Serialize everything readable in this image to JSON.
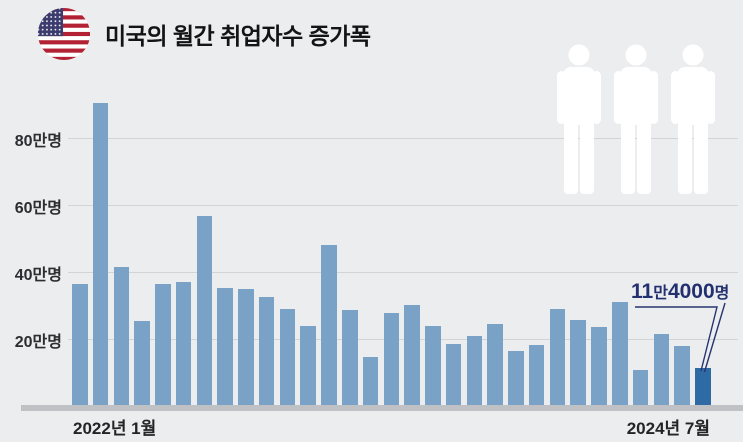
{
  "header": {
    "title": "미국의 월간 취업자수 증가폭",
    "flag_icon": "us-flag-icon"
  },
  "decoration": {
    "person_icon_count": 3
  },
  "chart_data": {
    "type": "bar",
    "title": "미국의 월간 취업자수 증가폭",
    "unit": "만명",
    "grid": true,
    "legend": null,
    "ylim": [
      0,
      95
    ],
    "x": [
      "2022-01",
      "2022-02",
      "2022-03",
      "2022-04",
      "2022-05",
      "2022-06",
      "2022-07",
      "2022-08",
      "2022-09",
      "2022-10",
      "2022-11",
      "2022-12",
      "2023-01",
      "2023-02",
      "2023-03",
      "2023-04",
      "2023-05",
      "2023-06",
      "2023-07",
      "2023-08",
      "2023-09",
      "2023-10",
      "2023-11",
      "2023-12",
      "2024-01",
      "2024-02",
      "2024-03",
      "2024-04",
      "2024-05",
      "2024-06",
      "2024-07"
    ],
    "values": [
      36.4,
      90.4,
      41.4,
      25.4,
      36.4,
      37.0,
      56.8,
      35.2,
      35.0,
      32.4,
      29.0,
      23.9,
      48.2,
      28.7,
      14.6,
      27.8,
      30.3,
      24.0,
      18.4,
      21.0,
      24.6,
      16.5,
      18.2,
      29.0,
      25.6,
      23.6,
      31.0,
      10.8,
      21.6,
      17.9,
      11.4
    ],
    "highlight_index": 30,
    "yticks": [
      {
        "value": 20,
        "label": "20만명"
      },
      {
        "value": 40,
        "label": "40만명"
      },
      {
        "value": 60,
        "label": "60만명"
      },
      {
        "value": 80,
        "label": "80만명"
      }
    ],
    "xtick_labels": [
      {
        "label": "2022년 1월",
        "align": "left"
      },
      {
        "label": "2024년 7월",
        "align": "right"
      }
    ],
    "annotation": {
      "text": "11만4000명",
      "target": "2024-07",
      "parts": [
        {
          "text": "11",
          "kind": "number"
        },
        {
          "text": "만",
          "kind": "suffix"
        },
        {
          "text": "4000",
          "kind": "number"
        },
        {
          "text": "명",
          "kind": "suffix"
        }
      ]
    },
    "colors": {
      "bar": "#7aa1c6",
      "highlight_bar": "#2e6ba4",
      "annotation": "#22306f",
      "gridline": "#d2d4d6",
      "baseline": "#bfc1c4",
      "background": "#ecedef"
    }
  }
}
